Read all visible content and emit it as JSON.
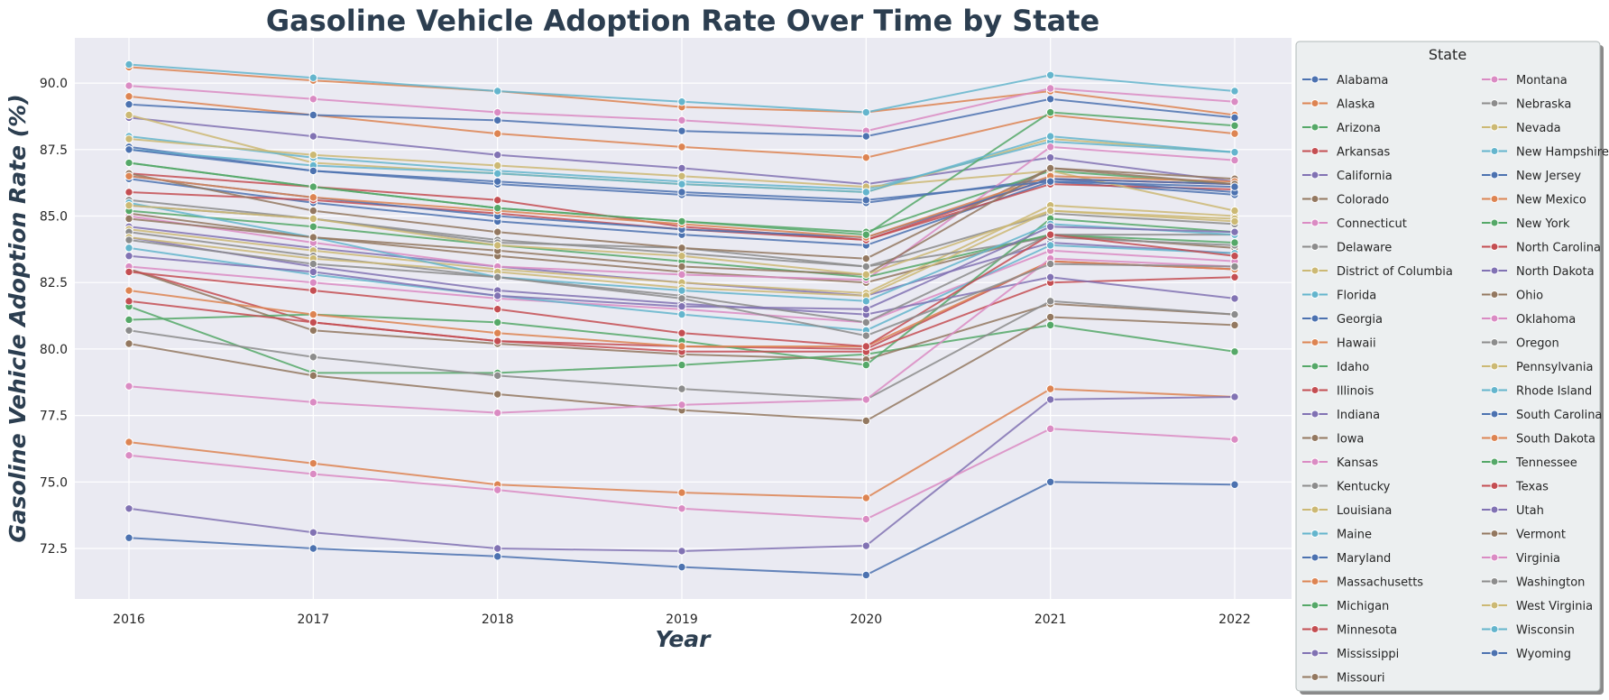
{
  "chart_data": {
    "type": "line",
    "title": "Gasoline Vehicle Adoption Rate Over Time by State",
    "xlabel": "Year",
    "ylabel": "Gasoline Vehicle Adoption Rate (%)",
    "x": [
      "2016",
      "2017",
      "2018",
      "2019",
      "2020",
      "2021",
      "2022"
    ],
    "y_ticks": [
      "72.5",
      "75.0",
      "77.5",
      "80.0",
      "82.5",
      "85.0",
      "87.5",
      "90.0"
    ],
    "ylim": [
      70.6,
      91.7
    ],
    "grid": true,
    "legend": {
      "title": "State",
      "placement": "outside-right",
      "columns": 2
    },
    "series": [
      {
        "name": "Alabama",
        "color": "#4c72b0",
        "values": [
          86.4,
          85.5,
          84.8,
          84.3,
          83.9,
          86.3,
          85.8
        ]
      },
      {
        "name": "Alaska",
        "color": "#dd8452",
        "values": [
          90.6,
          90.1,
          89.7,
          89.1,
          88.9,
          89.7,
          88.8
        ]
      },
      {
        "name": "Arizona",
        "color": "#55a868",
        "values": [
          81.6,
          79.1,
          79.1,
          79.4,
          79.8,
          80.9,
          79.9
        ]
      },
      {
        "name": "Arkansas",
        "color": "#c44e52",
        "values": [
          85.9,
          85.6,
          85.1,
          84.5,
          84.1,
          86.2,
          86.0
        ]
      },
      {
        "name": "California",
        "color": "#8172b3",
        "values": [
          88.7,
          88.0,
          87.3,
          86.8,
          86.2,
          87.2,
          86.3
        ]
      },
      {
        "name": "Colorado",
        "color": "#937860",
        "values": [
          85.1,
          84.2,
          83.5,
          82.9,
          82.5,
          84.3,
          83.8
        ]
      },
      {
        "name": "Connecticut",
        "color": "#da8bc3",
        "values": [
          89.9,
          89.4,
          88.9,
          88.6,
          88.2,
          89.8,
          89.3
        ]
      },
      {
        "name": "Delaware",
        "color": "#8c8c8c",
        "values": [
          85.6,
          84.9,
          84.1,
          83.6,
          83.1,
          85.1,
          84.7
        ]
      },
      {
        "name": "District of Columbia",
        "color": "#ccb974",
        "values": [
          88.8,
          87.0,
          86.6,
          86.2,
          85.9,
          87.9,
          87.4
        ]
      },
      {
        "name": "Florida",
        "color": "#64b5cd",
        "values": [
          88.0,
          87.2,
          86.7,
          86.3,
          86.0,
          87.8,
          87.4
        ]
      },
      {
        "name": "Georgia",
        "color": "#4c72b0",
        "values": [
          87.6,
          86.7,
          86.2,
          85.8,
          85.5,
          86.4,
          85.9
        ]
      },
      {
        "name": "Hawaii",
        "color": "#dd8452",
        "values": [
          89.5,
          88.8,
          88.1,
          87.6,
          87.2,
          88.8,
          88.1
        ]
      },
      {
        "name": "Idaho",
        "color": "#55a868",
        "values": [
          87.0,
          86.1,
          85.3,
          84.8,
          84.4,
          86.7,
          86.2
        ]
      },
      {
        "name": "Illinois",
        "color": "#c44e52",
        "values": [
          83.0,
          81.0,
          80.3,
          80.1,
          80.0,
          83.3,
          83.0
        ]
      },
      {
        "name": "Indiana",
        "color": "#8172b3",
        "values": [
          84.6,
          83.8,
          83.1,
          82.5,
          82.0,
          84.0,
          83.6
        ]
      },
      {
        "name": "Iowa",
        "color": "#937860",
        "values": [
          83.0,
          80.7,
          80.2,
          79.8,
          79.6,
          81.7,
          81.3
        ]
      },
      {
        "name": "Kansas",
        "color": "#da8bc3",
        "values": [
          83.1,
          82.5,
          81.9,
          81.5,
          81.0,
          83.7,
          83.3
        ]
      },
      {
        "name": "Kentucky",
        "color": "#8c8c8c",
        "values": [
          80.7,
          79.7,
          79.0,
          78.5,
          78.1,
          81.8,
          81.3
        ]
      },
      {
        "name": "Louisiana",
        "color": "#ccb974",
        "values": [
          84.5,
          83.7,
          83.0,
          82.5,
          82.1,
          85.4,
          85.0
        ]
      },
      {
        "name": "Maine",
        "color": "#64b5cd",
        "values": [
          83.8,
          82.8,
          82.0,
          81.3,
          80.7,
          83.9,
          83.6
        ]
      },
      {
        "name": "Maryland",
        "color": "#4c72b0",
        "values": [
          72.9,
          72.5,
          72.2,
          71.8,
          71.5,
          75.0,
          74.9
        ]
      },
      {
        "name": "Massachusetts",
        "color": "#dd8452",
        "values": [
          76.5,
          75.7,
          74.9,
          74.6,
          74.4,
          78.5,
          78.2
        ]
      },
      {
        "name": "Michigan",
        "color": "#55a868",
        "values": [
          81.1,
          81.3,
          81.0,
          80.3,
          79.4,
          84.9,
          84.4
        ]
      },
      {
        "name": "Minnesota",
        "color": "#c44e52",
        "values": [
          81.8,
          81.0,
          80.3,
          79.9,
          79.9,
          82.5,
          82.7
        ]
      },
      {
        "name": "Mississippi",
        "color": "#8172b3",
        "values": [
          74.0,
          73.1,
          72.5,
          72.4,
          72.6,
          78.1,
          78.2
        ]
      },
      {
        "name": "Missouri",
        "color": "#937860",
        "values": [
          80.2,
          79.0,
          78.3,
          77.7,
          77.3,
          81.2,
          80.9
        ]
      },
      {
        "name": "Montana",
        "color": "#da8bc3",
        "values": [
          85.0,
          84.0,
          83.1,
          82.8,
          82.6,
          87.6,
          87.1
        ]
      },
      {
        "name": "Nebraska",
        "color": "#8c8c8c",
        "values": [
          85.4,
          84.9,
          84.0,
          83.8,
          83.1,
          84.2,
          83.9
        ]
      },
      {
        "name": "Nevada",
        "color": "#ccb974",
        "values": [
          87.9,
          87.3,
          86.9,
          86.5,
          86.1,
          86.7,
          85.2
        ]
      },
      {
        "name": "New Hampshire",
        "color": "#64b5cd",
        "values": [
          90.7,
          90.2,
          89.7,
          89.3,
          88.9,
          90.3,
          89.7
        ]
      },
      {
        "name": "New Jersey",
        "color": "#4c72b0",
        "values": [
          89.2,
          88.8,
          88.6,
          88.2,
          88.0,
          89.4,
          88.7
        ]
      },
      {
        "name": "New Mexico",
        "color": "#dd8452",
        "values": [
          82.2,
          81.3,
          80.6,
          80.1,
          80.1,
          83.3,
          83.0
        ]
      },
      {
        "name": "New York",
        "color": "#55a868",
        "values": [
          85.2,
          84.6,
          83.9,
          83.3,
          82.7,
          84.3,
          84.0
        ]
      },
      {
        "name": "North Carolina",
        "color": "#c44e52",
        "values": [
          86.6,
          86.1,
          85.6,
          84.6,
          84.1,
          86.4,
          86.2
        ]
      },
      {
        "name": "North Dakota",
        "color": "#8172b3",
        "values": [
          84.2,
          83.1,
          82.2,
          81.7,
          81.3,
          82.7,
          81.9
        ]
      },
      {
        "name": "Ohio",
        "color": "#937860",
        "values": [
          86.6,
          85.2,
          84.4,
          83.8,
          83.4,
          86.8,
          86.4
        ]
      },
      {
        "name": "Oklahoma",
        "color": "#da8bc3",
        "values": [
          78.6,
          78.0,
          77.6,
          77.9,
          78.1,
          83.4,
          83.1
        ]
      },
      {
        "name": "Oregon",
        "color": "#8c8c8c",
        "values": [
          84.4,
          83.5,
          82.7,
          82.0,
          81.0,
          84.3,
          84.3
        ]
      },
      {
        "name": "Pennsylvania",
        "color": "#ccb974",
        "values": [
          84.2,
          83.4,
          82.9,
          82.3,
          82.0,
          85.2,
          84.9
        ]
      },
      {
        "name": "Rhode Island",
        "color": "#64b5cd",
        "values": [
          85.5,
          84.2,
          82.7,
          82.2,
          81.8,
          84.7,
          84.3
        ]
      },
      {
        "name": "South Carolina",
        "color": "#4c72b0",
        "values": [
          86.5,
          85.7,
          85.0,
          84.5,
          84.2,
          86.4,
          86.2
        ]
      },
      {
        "name": "South Dakota",
        "color": "#dd8452",
        "values": [
          86.5,
          85.7,
          85.2,
          84.7,
          84.2,
          86.5,
          86.3
        ]
      },
      {
        "name": "Tennessee",
        "color": "#55a868",
        "values": [
          87.0,
          86.1,
          85.3,
          84.8,
          84.3,
          88.9,
          88.4
        ]
      },
      {
        "name": "Texas",
        "color": "#c44e52",
        "values": [
          82.9,
          82.2,
          81.5,
          80.6,
          80.1,
          84.3,
          83.5
        ]
      },
      {
        "name": "Utah",
        "color": "#8172b3",
        "values": [
          83.5,
          82.9,
          82.0,
          81.6,
          81.5,
          84.6,
          84.4
        ]
      },
      {
        "name": "Vermont",
        "color": "#937860",
        "values": [
          84.9,
          84.2,
          83.7,
          83.1,
          82.8,
          86.8,
          86.2
        ]
      },
      {
        "name": "Virginia",
        "color": "#da8bc3",
        "values": [
          76.0,
          75.3,
          74.7,
          74.0,
          73.6,
          77.0,
          76.6
        ]
      },
      {
        "name": "Washington",
        "color": "#8c8c8c",
        "values": [
          84.1,
          83.2,
          82.7,
          81.9,
          80.5,
          83.2,
          83.1
        ]
      },
      {
        "name": "West Virginia",
        "color": "#ccb974",
        "values": [
          85.4,
          84.9,
          83.9,
          83.5,
          82.8,
          85.2,
          84.8
        ]
      },
      {
        "name": "Wisconsin",
        "color": "#64b5cd",
        "values": [
          87.5,
          86.9,
          86.6,
          86.2,
          85.9,
          88.0,
          87.4
        ]
      },
      {
        "name": "Wyoming",
        "color": "#4c72b0",
        "values": [
          87.5,
          86.7,
          86.3,
          85.9,
          85.6,
          86.3,
          86.1
        ]
      }
    ]
  }
}
